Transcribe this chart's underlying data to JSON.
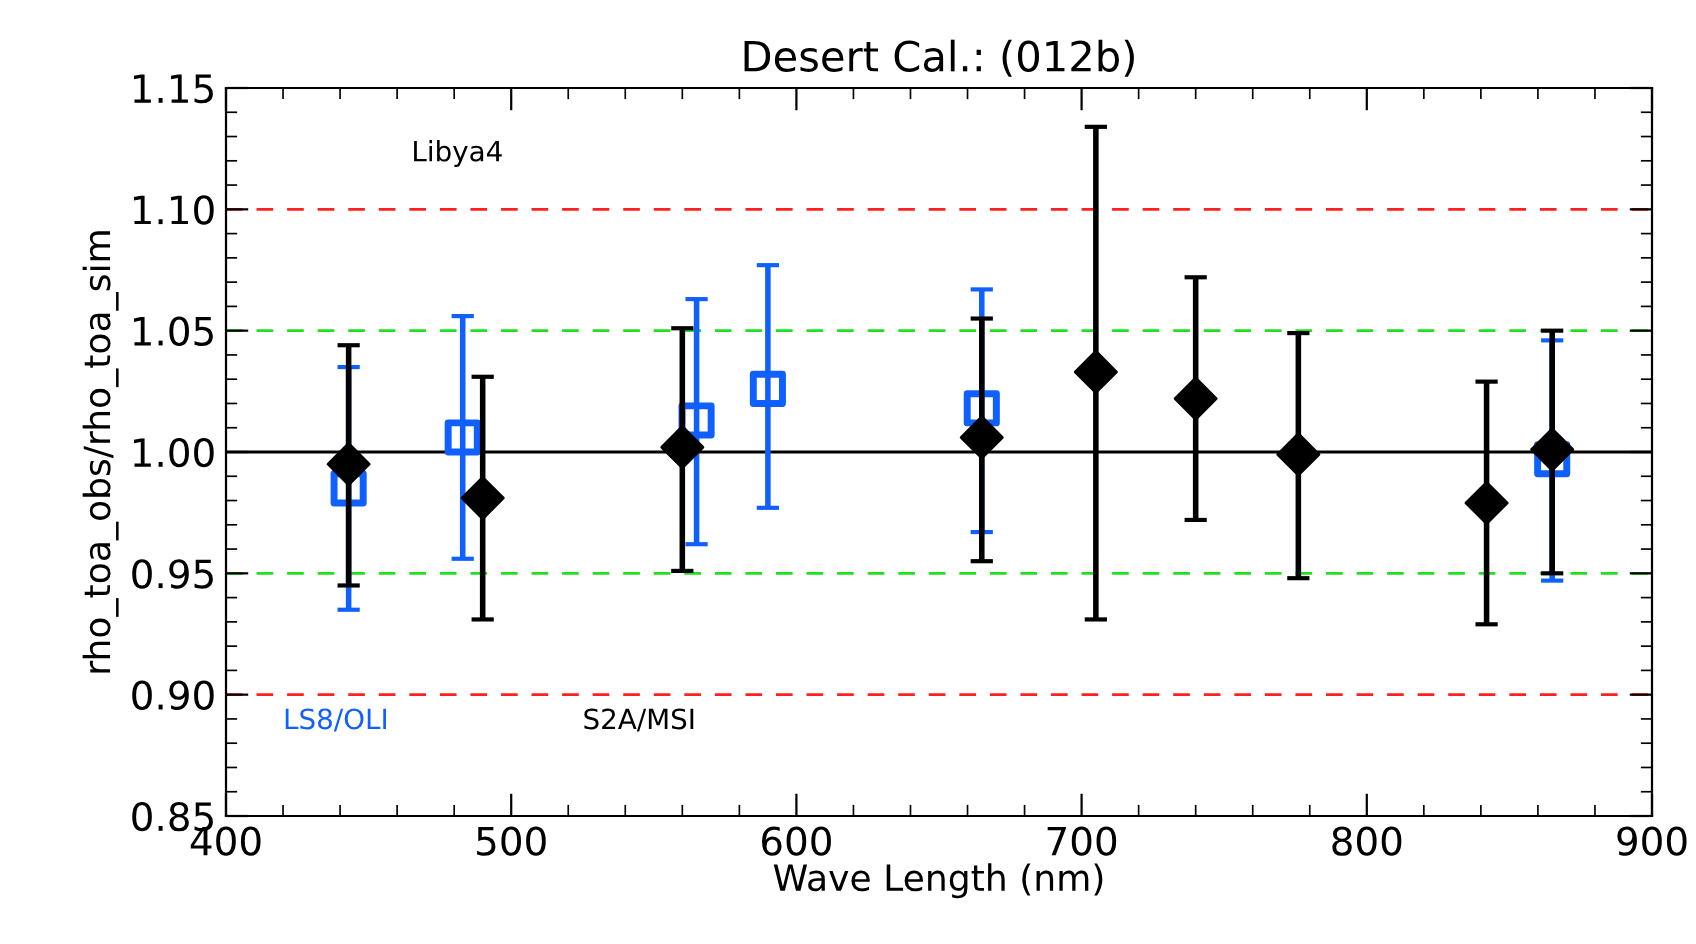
{
  "chart_data": {
    "type": "scatter",
    "title": "Desert Cal.: (012b)",
    "xlabel": "Wave Length (nm)",
    "ylabel": "rho_toa_obs/rho_toa_sim",
    "annotations": [
      "Libya4"
    ],
    "xlim": [
      400,
      900
    ],
    "xticks": [
      400,
      500,
      600,
      700,
      800,
      900
    ],
    "ylim": [
      0.85,
      1.15
    ],
    "yticks": [
      {
        "value": 0.85,
        "label": "0.85"
      },
      {
        "value": 0.9,
        "label": "0.90"
      },
      {
        "value": 0.95,
        "label": "0.95"
      },
      {
        "value": 1.0,
        "label": "1.00"
      },
      {
        "value": 1.05,
        "label": "1.05"
      },
      {
        "value": 1.1,
        "label": "1.10"
      },
      {
        "value": 1.15,
        "label": "1.15"
      }
    ],
    "grid": false,
    "ref_lines": [
      {
        "axis": "y",
        "value": 1.1,
        "color": "#ff2020",
        "line_style": "dashed"
      },
      {
        "axis": "y",
        "value": 1.05,
        "color": "#20e020",
        "line_style": "dashed"
      },
      {
        "axis": "y",
        "value": 1.0,
        "color": "#000000",
        "line_style": "solid"
      },
      {
        "axis": "y",
        "value": 0.95,
        "color": "#20e020",
        "line_style": "dashed"
      },
      {
        "axis": "y",
        "value": 0.9,
        "color": "#ff2020",
        "line_style": "dashed"
      }
    ],
    "series": [
      {
        "name": "LS8/OLI",
        "color": "#1060ff",
        "marker": "square",
        "x": [
          443,
          483,
          565,
          590,
          665,
          865
        ],
        "values": [
          0.985,
          1.006,
          1.013,
          1.026,
          1.018,
          0.997
        ],
        "errors": [
          [
            0.935,
            1.035
          ],
          [
            0.956,
            1.056
          ],
          [
            0.962,
            1.063
          ],
          [
            0.977,
            1.077
          ],
          [
            0.967,
            1.067
          ],
          [
            0.947,
            1.046
          ]
        ]
      },
      {
        "name": "S2A/MSI",
        "color": "#000000",
        "marker": "diamond",
        "x": [
          443,
          490,
          560,
          665,
          705,
          740,
          776,
          842,
          865
        ],
        "values": [
          0.995,
          0.981,
          1.002,
          1.006,
          1.033,
          1.022,
          0.999,
          0.979,
          1.001
        ],
        "errors": [
          [
            0.945,
            1.044
          ],
          [
            0.931,
            1.031
          ],
          [
            0.951,
            1.051
          ],
          [
            0.955,
            1.055
          ],
          [
            0.931,
            1.134
          ],
          [
            0.972,
            1.072
          ],
          [
            0.948,
            1.049
          ],
          [
            0.929,
            1.029
          ],
          [
            0.95,
            1.05
          ]
        ]
      }
    ]
  }
}
